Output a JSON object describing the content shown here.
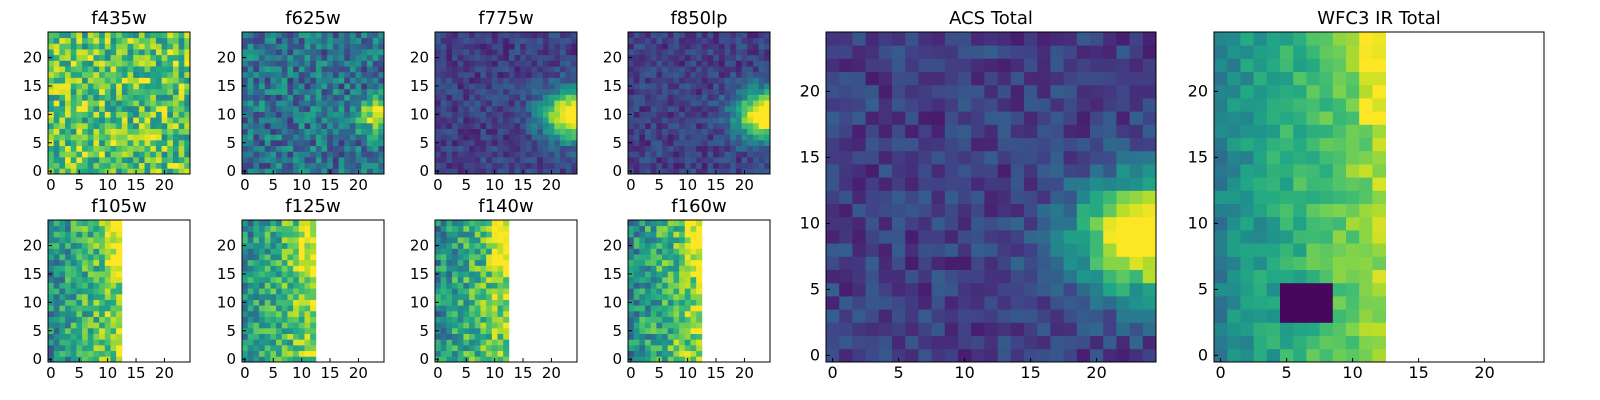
{
  "figure": {
    "colormap": "viridis",
    "missing_color": "#ffffff"
  },
  "chart_data": [
    {
      "type": "heatmap",
      "title": "f435w",
      "grid_size": [
        25,
        25
      ],
      "xlim": [
        0,
        24
      ],
      "ylim": [
        0,
        24
      ],
      "xticks": [
        0,
        5,
        10,
        15,
        20
      ],
      "yticks": [
        0,
        5,
        10,
        15,
        20
      ],
      "valid_x_max": 24,
      "pattern": "noise_high",
      "hotspot": null
    },
    {
      "type": "heatmap",
      "title": "f625w",
      "grid_size": [
        25,
        25
      ],
      "xlim": [
        0,
        24
      ],
      "ylim": [
        0,
        24
      ],
      "xticks": [
        0,
        5,
        10,
        15,
        20
      ],
      "yticks": [
        0,
        5,
        10,
        15,
        20
      ],
      "valid_x_max": 24,
      "pattern": "noise_mid",
      "hotspot": [
        24,
        10
      ]
    },
    {
      "type": "heatmap",
      "title": "f775w",
      "grid_size": [
        25,
        25
      ],
      "xlim": [
        0,
        24
      ],
      "ylim": [
        0,
        24
      ],
      "xticks": [
        0,
        5,
        10,
        15,
        20
      ],
      "yticks": [
        0,
        5,
        10,
        15,
        20
      ],
      "valid_x_max": 24,
      "pattern": "hotspot",
      "hotspot": [
        24,
        10
      ]
    },
    {
      "type": "heatmap",
      "title": "f850lp",
      "grid_size": [
        25,
        25
      ],
      "xlim": [
        0,
        24
      ],
      "ylim": [
        0,
        24
      ],
      "xticks": [
        0,
        5,
        10,
        15,
        20
      ],
      "yticks": [
        0,
        5,
        10,
        15,
        20
      ],
      "valid_x_max": 24,
      "pattern": "hotspot",
      "hotspot": [
        24,
        10
      ]
    },
    {
      "type": "heatmap",
      "title": "f105w",
      "grid_size": [
        25,
        25
      ],
      "xlim": [
        0,
        24
      ],
      "ylim": [
        0,
        24
      ],
      "xticks": [
        0,
        5,
        10,
        15,
        20
      ],
      "yticks": [
        0,
        5,
        10,
        15,
        20
      ],
      "valid_x_max": 12,
      "pattern": "ir",
      "hotspot": null
    },
    {
      "type": "heatmap",
      "title": "f125w",
      "grid_size": [
        25,
        25
      ],
      "xlim": [
        0,
        24
      ],
      "ylim": [
        0,
        24
      ],
      "xticks": [
        0,
        5,
        10,
        15,
        20
      ],
      "yticks": [
        0,
        5,
        10,
        15,
        20
      ],
      "valid_x_max": 12,
      "pattern": "ir",
      "hotspot": null
    },
    {
      "type": "heatmap",
      "title": "f140w",
      "grid_size": [
        25,
        25
      ],
      "xlim": [
        0,
        24
      ],
      "ylim": [
        0,
        24
      ],
      "xticks": [
        0,
        5,
        10,
        15,
        20
      ],
      "yticks": [
        0,
        5,
        10,
        15,
        20
      ],
      "valid_x_max": 12,
      "pattern": "ir",
      "hotspot": null
    },
    {
      "type": "heatmap",
      "title": "f160w",
      "grid_size": [
        25,
        25
      ],
      "xlim": [
        0,
        24
      ],
      "ylim": [
        0,
        24
      ],
      "xticks": [
        0,
        5,
        10,
        15,
        20
      ],
      "yticks": [
        0,
        5,
        10,
        15,
        20
      ],
      "valid_x_max": 12,
      "pattern": "ir",
      "hotspot": null
    },
    {
      "type": "heatmap",
      "title": "ACS Total",
      "grid_size": [
        25,
        25
      ],
      "xlim": [
        0,
        24
      ],
      "ylim": [
        0,
        24
      ],
      "xticks": [
        0,
        5,
        10,
        15,
        20
      ],
      "yticks": [
        0,
        5,
        10,
        15,
        20
      ],
      "valid_x_max": 24,
      "pattern": "hotspot",
      "hotspot": [
        24,
        9
      ]
    },
    {
      "type": "heatmap",
      "title": "WFC3 IR Total",
      "grid_size": [
        25,
        25
      ],
      "xlim": [
        0,
        24
      ],
      "ylim": [
        0,
        24
      ],
      "xticks": [
        0,
        5,
        10,
        15,
        20
      ],
      "yticks": [
        0,
        5,
        10,
        15,
        20
      ],
      "valid_x_max": 12,
      "pattern": "ir_total",
      "hotspot": null
    }
  ]
}
